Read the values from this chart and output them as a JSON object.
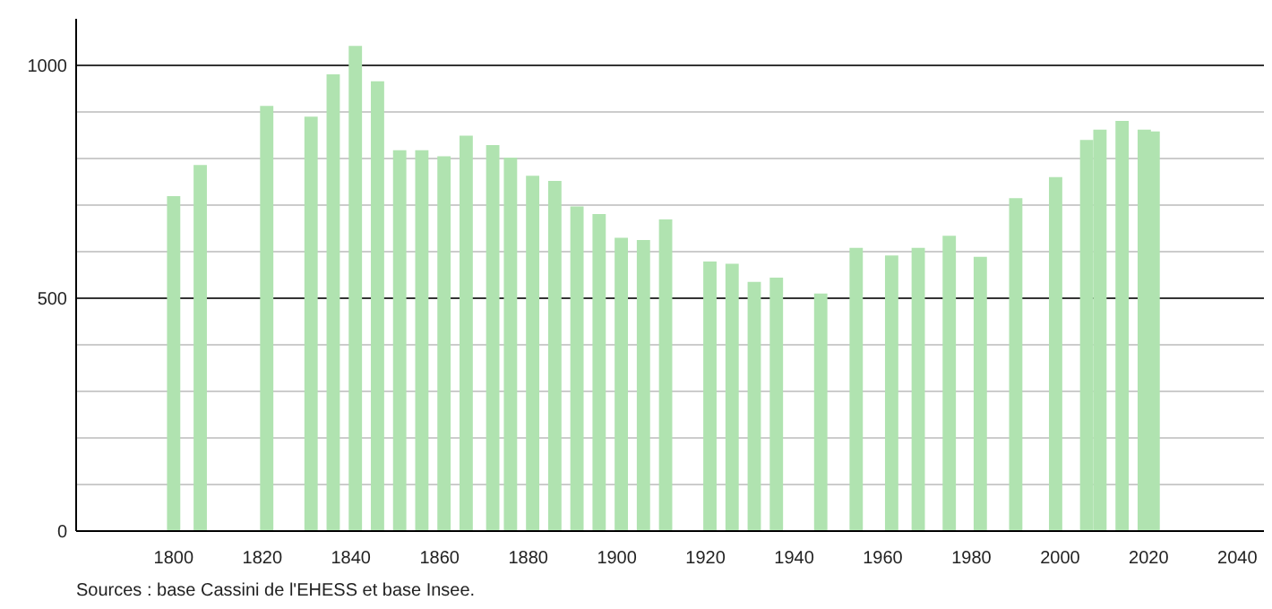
{
  "chart_data": {
    "type": "bar",
    "x": [
      1800,
      1806,
      1821,
      1831,
      1836,
      1841,
      1846,
      1851,
      1856,
      1861,
      1866,
      1872,
      1876,
      1881,
      1886,
      1891,
      1896,
      1901,
      1906,
      1911,
      1921,
      1926,
      1931,
      1936,
      1946,
      1954,
      1962,
      1968,
      1975,
      1982,
      1990,
      1999,
      2006,
      2009,
      2014,
      2019,
      2021
    ],
    "values": [
      719,
      786,
      913,
      890,
      981,
      1042,
      966,
      818,
      818,
      805,
      849,
      829,
      802,
      763,
      752,
      697,
      681,
      630,
      625,
      669,
      579,
      574,
      535,
      544,
      510,
      608,
      592,
      608,
      634,
      589,
      715,
      760,
      840,
      862,
      881,
      862,
      858
    ],
    "color": "#b0e3b0",
    "xlim": [
      1778,
      2046
    ],
    "xticks": [
      1800,
      1820,
      1840,
      1860,
      1880,
      1900,
      1920,
      1940,
      1960,
      1980,
      2000,
      2020,
      2040
    ],
    "ylim": [
      0,
      1100
    ],
    "yticks": [
      0,
      {
        "value": 100,
        "label": null
      },
      {
        "value": 200,
        "label": null
      },
      {
        "value": 300,
        "label": null
      },
      {
        "value": 400,
        "label": null
      },
      500,
      {
        "value": 600,
        "label": null
      },
      {
        "value": 700,
        "label": null
      },
      {
        "value": 800,
        "label": null
      },
      {
        "value": 900,
        "label": null
      },
      1000
    ],
    "grid": "y",
    "annotations": [
      "Sources : base Cassini de l'EHESS et base Insee."
    ]
  }
}
